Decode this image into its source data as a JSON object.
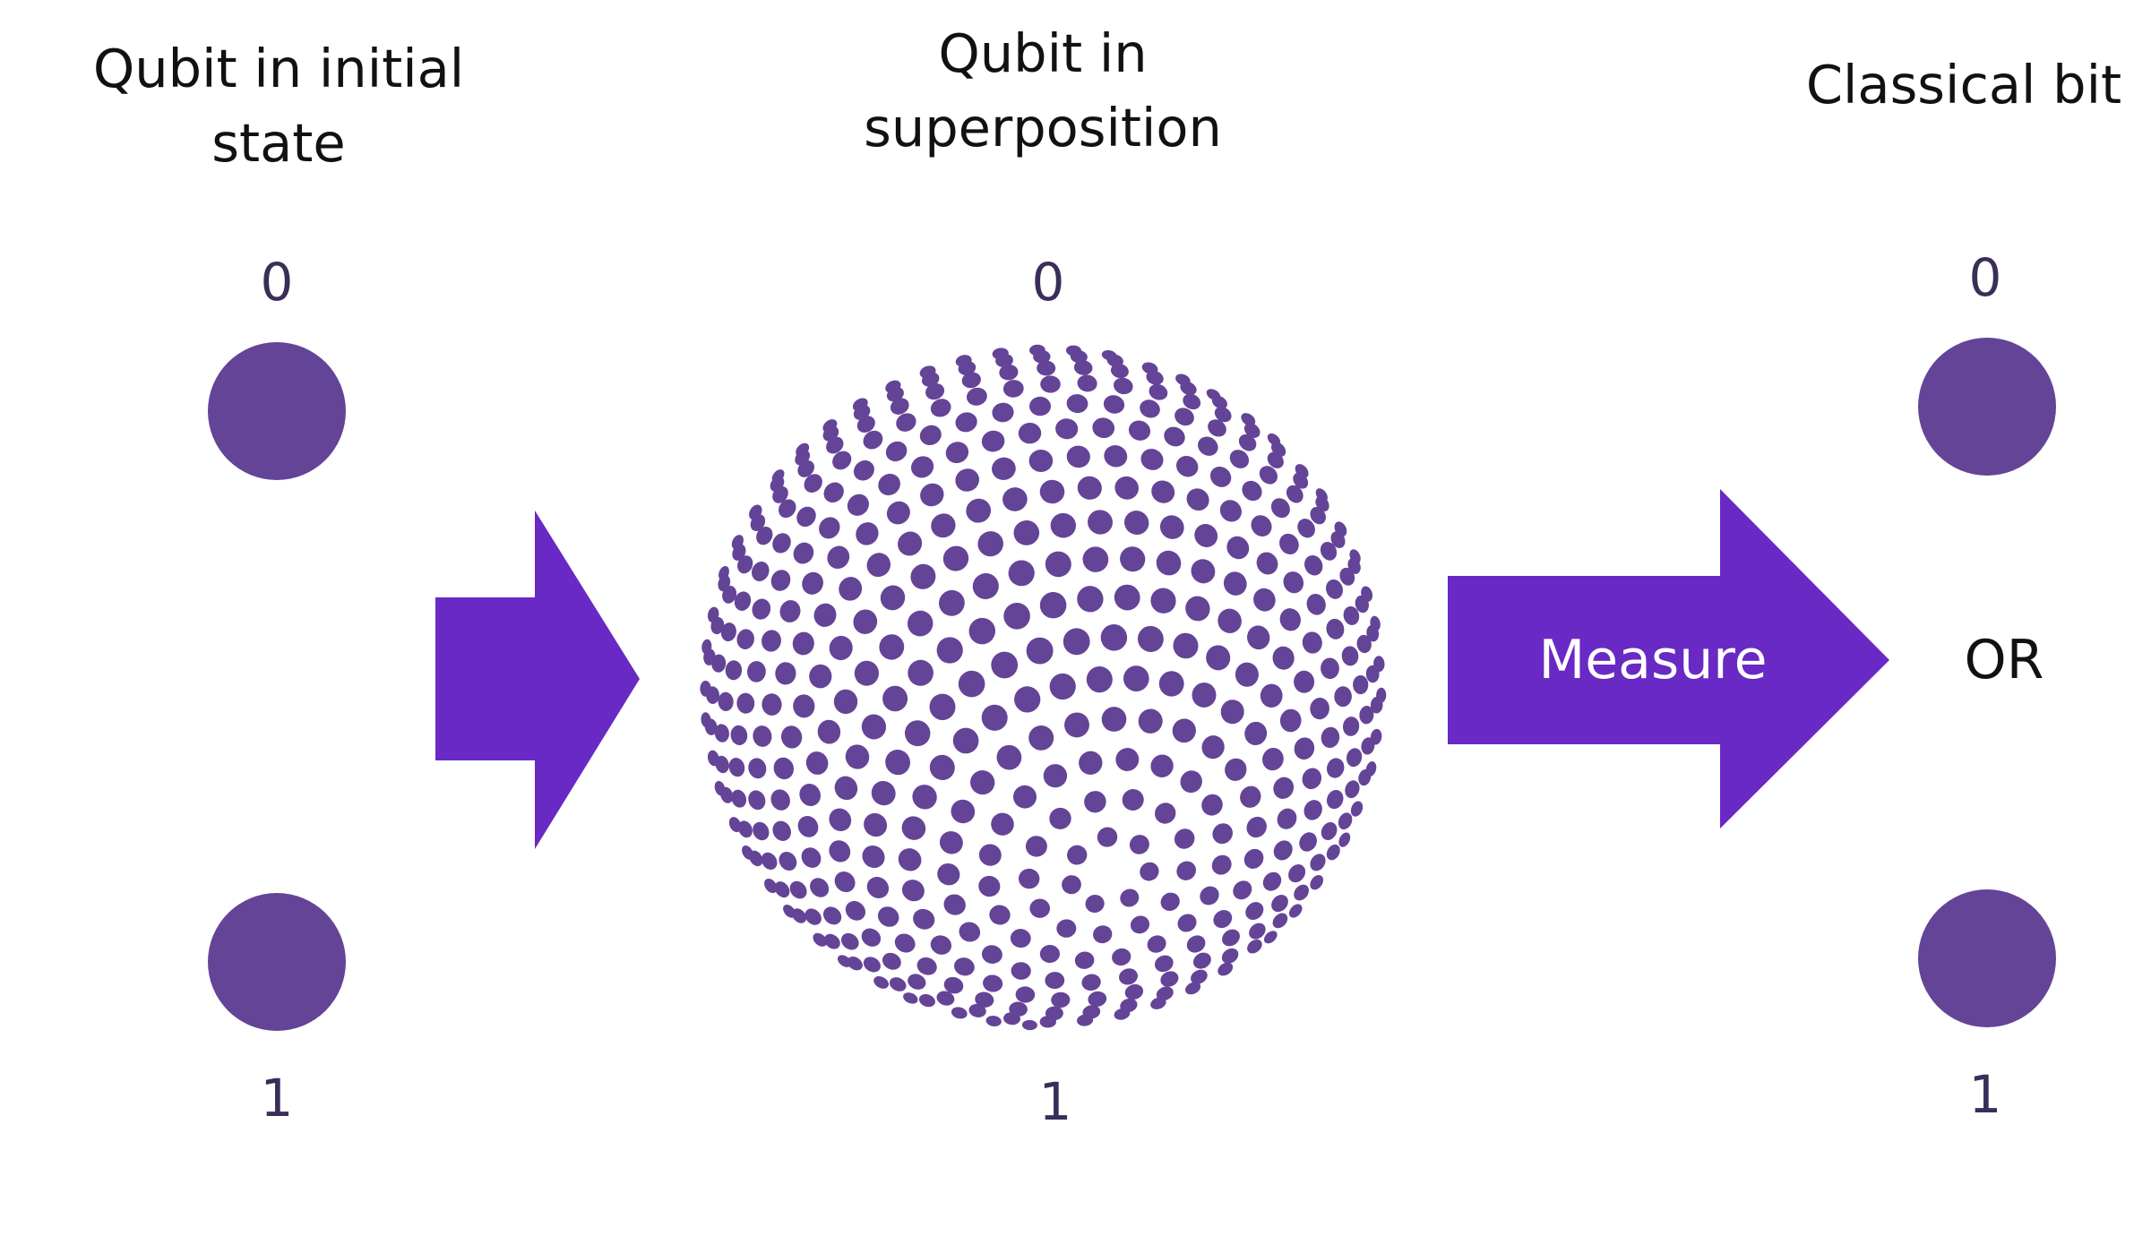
{
  "headings": {
    "initial": [
      "Qubit in initial",
      "state"
    ],
    "superposition": [
      "Qubit in",
      "superposition"
    ],
    "classical": [
      "Classical bit"
    ]
  },
  "states": {
    "initial": {
      "zero": "0",
      "one": "1"
    },
    "superposition": {
      "zero": "0",
      "one": "1"
    },
    "classical": {
      "zero": "0",
      "one": "1"
    }
  },
  "measure_arrow": {
    "label": "Measure"
  },
  "or_label": "OR",
  "colors": {
    "state_dot": "#644497",
    "arrow": "#6929c4",
    "sphere_dot": "#644497",
    "background": "#ffffff"
  },
  "icons": {
    "state_dot": "filled-circle-icon",
    "arrow": "right-arrow-icon",
    "sphere": "dotted-sphere-icon"
  }
}
